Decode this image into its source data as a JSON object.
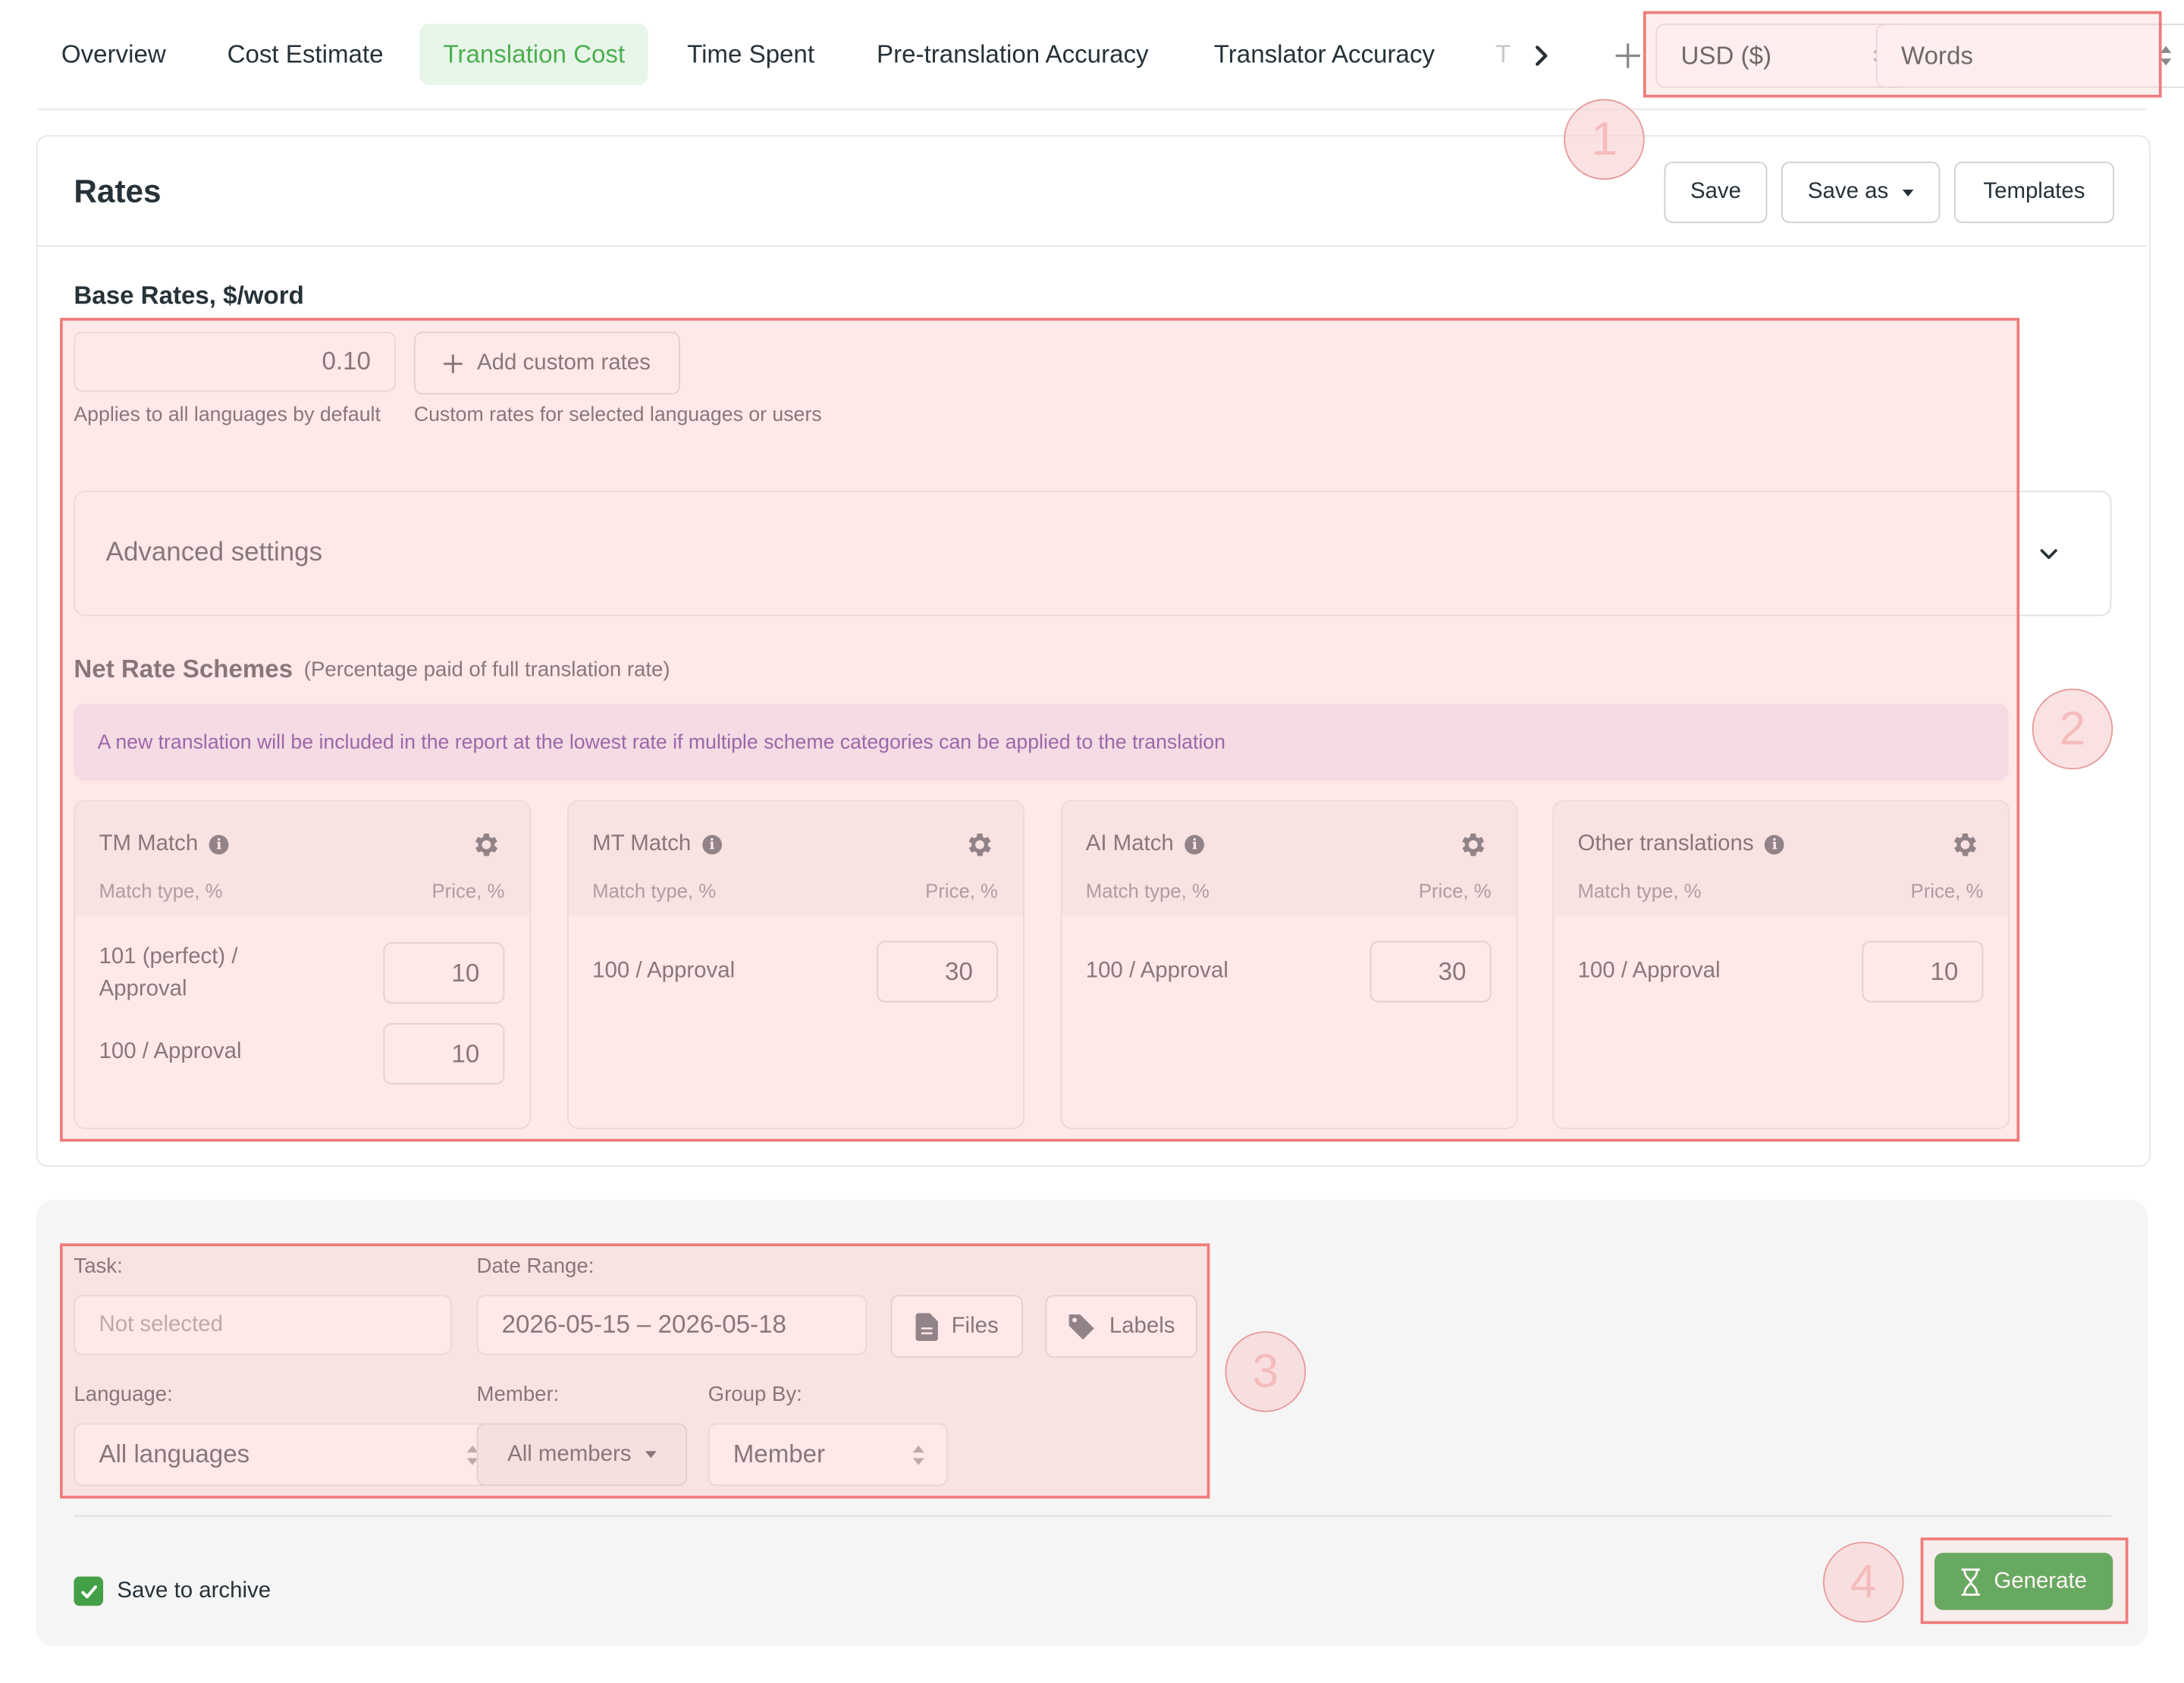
{
  "tabs": [
    {
      "label": "Overview",
      "active": false
    },
    {
      "label": "Cost Estimate",
      "active": false
    },
    {
      "label": "Translation Cost",
      "active": true
    },
    {
      "label": "Time Spent",
      "active": false
    },
    {
      "label": "Pre-translation Accuracy",
      "active": false
    },
    {
      "label": "Translator Accuracy",
      "active": false
    },
    {
      "label": "T",
      "active": false
    }
  ],
  "tabbar": {
    "next_icon": "chevron-right-icon",
    "add_icon": "plus-icon"
  },
  "currency": {
    "value": "USD ($)"
  },
  "unit": {
    "value": "Words"
  },
  "rates": {
    "title": "Rates",
    "save_label": "Save",
    "save_as_label": "Save as",
    "templates_label": "Templates",
    "base_rates_title": "Base Rates, $/word",
    "base_rate_value": "0.10",
    "base_rate_hint": "Applies to all languages by default",
    "add_custom_label": "Add custom rates",
    "custom_hint": "Custom rates for selected languages or users",
    "advanced_label": "Advanced settings",
    "net_title": "Net Rate Schemes",
    "net_subtitle": "(Percentage paid of full translation rate)",
    "net_notice": "A new translation will be included in the report at the lowest rate if multiple scheme categories can be applied to the translation",
    "schemes": [
      {
        "title": "TM Match",
        "col_left": "Match type, %",
        "col_right": "Price, %",
        "rows": [
          {
            "label_1": "101 (perfect) /",
            "label_2": "Approval",
            "price": "10"
          },
          {
            "label_1": "100 / Approval",
            "label_2": "",
            "price": "10"
          }
        ]
      },
      {
        "title": "MT Match",
        "col_left": "Match type, %",
        "col_right": "Price, %",
        "rows": [
          {
            "label_1": "100 / Approval",
            "label_2": "",
            "price": "30"
          }
        ]
      },
      {
        "title": "AI Match",
        "col_left": "Match type, %",
        "col_right": "Price, %",
        "rows": [
          {
            "label_1": "100 / Approval",
            "label_2": "",
            "price": "30"
          }
        ]
      },
      {
        "title": "Other translations",
        "col_left": "Match type, %",
        "col_right": "Price, %",
        "rows": [
          {
            "label_1": "100 / Approval",
            "label_2": "",
            "price": "10"
          }
        ]
      }
    ]
  },
  "filters": {
    "task_label": "Task:",
    "task_placeholder": "Not selected",
    "date_label": "Date Range:",
    "date_value": "2026-05-15 – 2026-05-18",
    "files_label": "Files",
    "labels_label": "Labels",
    "language_label": "Language:",
    "language_value": "All languages",
    "member_label": "Member:",
    "member_value": "All members",
    "group_label": "Group By:",
    "group_value": "Member"
  },
  "footer": {
    "archive_label": "Save to archive",
    "archive_checked": true,
    "generate_label": "Generate"
  },
  "annotations": [
    "1",
    "2",
    "3",
    "4"
  ],
  "colors": {
    "accent": "#4caf50",
    "highlight_border": "#ef7b7b",
    "notice_text": "#4a148c"
  }
}
